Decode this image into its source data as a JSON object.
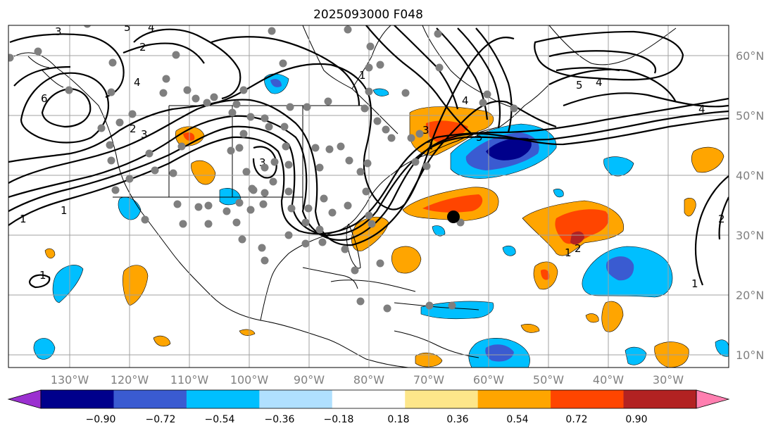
{
  "title": "2025093000 F048",
  "lon_labels": [
    "130°W",
    "120°W",
    "110°W",
    "100°W",
    "90°W",
    "80°W",
    "70°W",
    "60°W",
    "50°W",
    "40°W",
    "30°W"
  ],
  "lat_labels": [
    "60°N",
    "50°N",
    "40°N",
    "30°N",
    "20°N",
    "10°N"
  ],
  "colorbar": {
    "tick_labels": [
      "−0.90",
      "−0.72",
      "−0.54",
      "−0.36",
      "−0.18",
      "0.18",
      "0.36",
      "0.54",
      "0.72",
      "0.90"
    ],
    "colors": [
      "#9b30d0",
      "#00008b",
      "#3a5bd1",
      "#00bfff",
      "#b0e0ff",
      "#ffffff",
      "#fde68a",
      "#ffa500",
      "#ff4500",
      "#b22222",
      "#ff7fb0"
    ]
  },
  "contour_labels": [
    "3",
    "5",
    "4",
    "2",
    "4",
    "6",
    "3",
    "2",
    "5",
    "4",
    "1",
    "1",
    "3",
    "1",
    "2",
    "1",
    "1",
    "2",
    "4",
    "3",
    "5",
    "4",
    "1",
    "2"
  ],
  "colors": {
    "neg_strong": "#3a5bd1",
    "neg_mid": "#00bfff",
    "pos_mid": "#ffa500",
    "pos_strong": "#ff4500",
    "pos_max": "#b22222",
    "station": "#7f7f7f"
  }
}
